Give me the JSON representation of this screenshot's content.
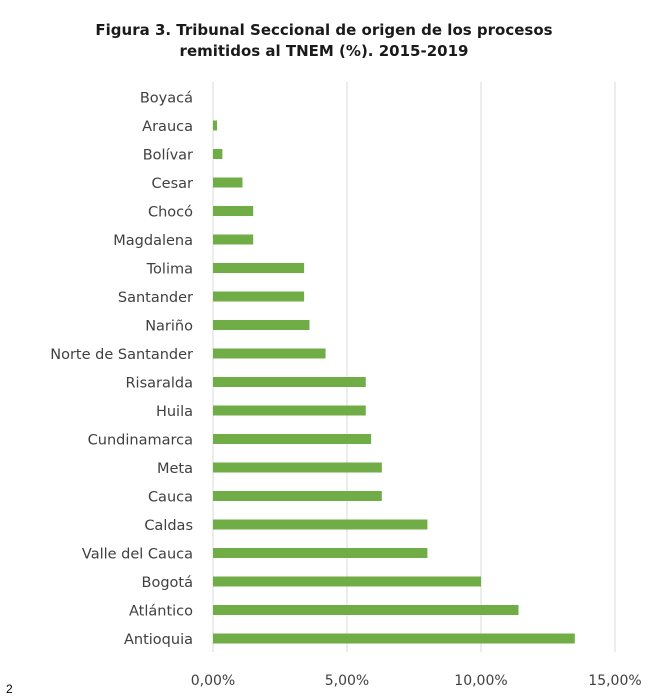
{
  "page_number": "2",
  "chart_data": {
    "type": "bar",
    "orientation": "horizontal",
    "title_lines": [
      "Figura 3. Tribunal Seccional de origen de los procesos",
      "remitidos al TNEM (%). 2015-2019"
    ],
    "xlabel": "",
    "ylabel": "",
    "categories": [
      "Boyacá",
      "Arauca",
      "Bolívar",
      "Cesar",
      "Chocó",
      "Magdalena",
      "Tolima",
      "Santander",
      "Nariño",
      "Norte de Santander",
      "Risaralda",
      "Huila",
      "Cundinamarca",
      "Meta",
      "Cauca",
      "Caldas",
      "Valle del Cauca",
      "Bogotá",
      "Atlántico",
      "Antioquia"
    ],
    "values": [
      0.0,
      0.15,
      0.35,
      1.1,
      1.5,
      1.5,
      3.4,
      3.4,
      3.6,
      4.2,
      5.7,
      5.7,
      5.9,
      6.3,
      6.3,
      8.0,
      8.0,
      10.0,
      11.4,
      13.5
    ],
    "xlim": [
      0,
      15
    ],
    "x_ticks": [
      0,
      5,
      10,
      15
    ],
    "x_tick_labels": [
      "0,00%",
      "5,00%",
      "10,00%",
      "15,00%"
    ],
    "bar_color": "#70ad47",
    "gridlines": "vertical",
    "legend": "none"
  }
}
